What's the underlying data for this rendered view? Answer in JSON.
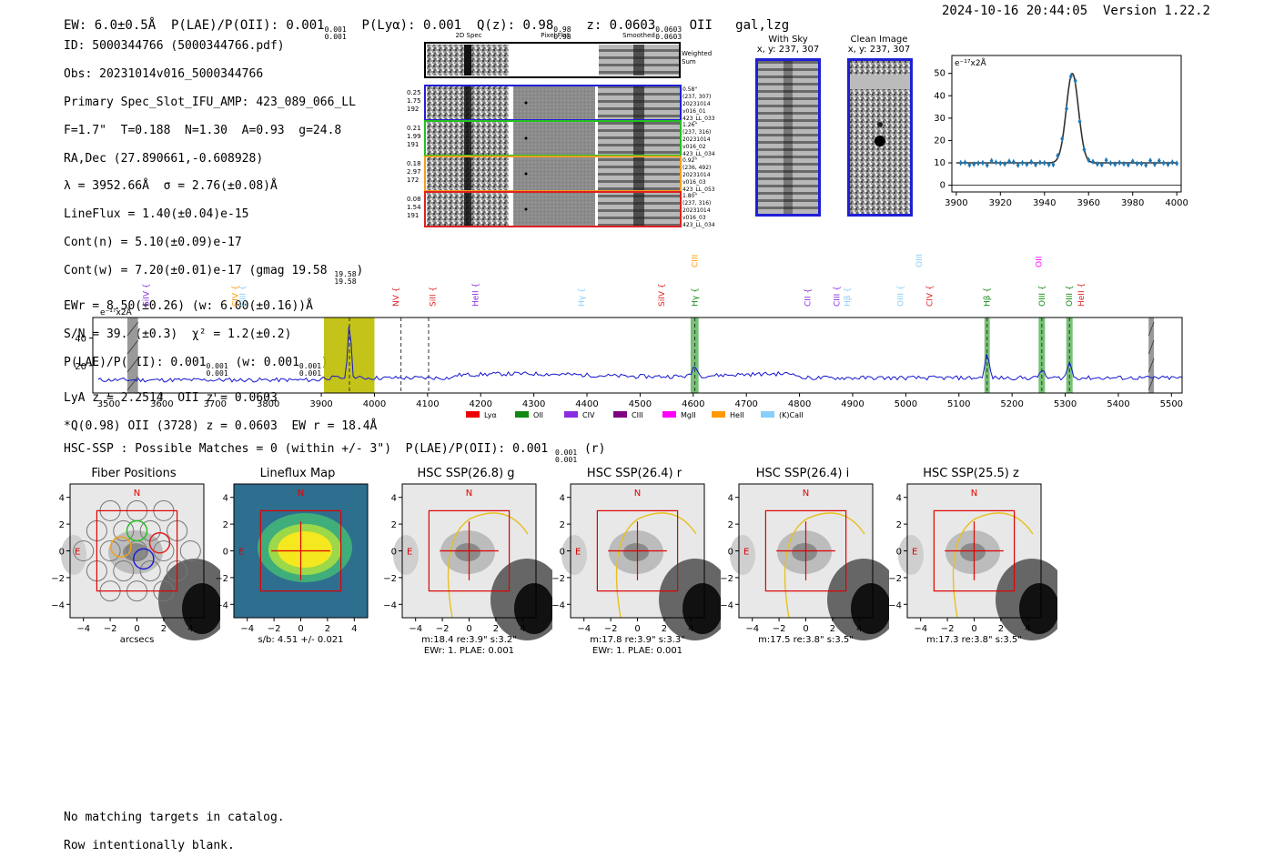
{
  "header": {
    "left": "EW: 6.0±0.5Å  P(LAE)/P(OII): 0.001",
    "plae_hi": "0.001",
    "plae_lo": "0.001",
    "plya": "P(Lyα): 0.001",
    "qz": "Q(z): 0.98",
    "qz_hi": "0.98",
    "qz_lo": "0.98",
    "z": "z: 0.0603",
    "z_hi": "0.0603",
    "z_lo": "0.0603",
    "line": "OII   gal,lzg",
    "right": "2024-10-16 20:44:05  Version 1.22.2"
  },
  "info": {
    "l1": "ID: 5000344766 (5000344766.pdf)",
    "l2": "Obs: 20231014v016_5000344766",
    "l3": "Primary Spec_Slot_IFU_AMP: 423_089_066_LL",
    "l4": "F=1.7\"  T=0.188  N=1.30  A=0.93  g=24.8",
    "l5": "RA,Dec (27.890661,-0.608928)",
    "l6": "λ = 3952.66Å  σ = 2.76(±0.08)Å",
    "l7": "LineFlux = 1.40(±0.04)e-15",
    "l8": "Cont(n) = 5.10(±0.09)e-17",
    "l9": "Cont(w) = 7.20(±0.01)e-17 (gmag 19.58",
    "l9_hi": "19.58",
    "l9_lo": "19.58",
    "l9_end": ")",
    "l10": "EWr = 8.50(±0.26) (w: 6.00(±0.16))Å",
    "l11": "S/N = 39.6(±0.3)  χ² = 1.2(±0.2)",
    "l12a": "P(LAE)/P(OII): 0.001",
    "l12_hi": "0.001",
    "l12_lo": "0.001",
    "l12b": " (w: 0.001",
    "l12b_hi": "0.001",
    "l12b_lo": "0.001",
    "l12c": ")",
    "l13": "LyA z = 2.2514  OII z = 0.0603",
    "l14": "*Q(0.98) OII (3728) z = 0.0603  EW r = 18.4Å"
  },
  "cutouts": {
    "col_2d": "2D Spec",
    "col_flat": "Pixel Flat",
    "col_smooth": "Smoothed",
    "weighted_sum": "Weighted\nSum",
    "rows": [
      {
        "left": [
          "0.25",
          "1.75",
          "192"
        ],
        "right": [
          "0.58\"",
          "(237, 307)",
          "20231014",
          "v016_01",
          "423_LL_033"
        ],
        "color": "#1f1fd6"
      },
      {
        "left": [
          "0.21",
          "1.99",
          "191"
        ],
        "right": [
          "1.26\"",
          "(237, 316)",
          "20231014",
          "v016_02",
          "423_LL_034"
        ],
        "color": "#22c022"
      },
      {
        "left": [
          "0.18",
          "2.97",
          "172"
        ],
        "right": [
          "0.92\"",
          "(236, 492)",
          "20231014",
          "v016_03",
          "423_LL_053"
        ],
        "color": "#f0a020"
      },
      {
        "left": [
          "0.08",
          "1.54",
          "191"
        ],
        "right": [
          "1.80\"",
          "(237, 316)",
          "20231014",
          "v016_03",
          "423_LL_034"
        ],
        "color": "#e02020"
      }
    ],
    "with_sky_title": "With Sky",
    "with_sky_xy": "x, y: 237, 307",
    "clean_title": "Clean Image",
    "clean_xy": "x, y: 237, 307"
  },
  "zoom_chart": {
    "ylabel": "e⁻¹⁷x2Å",
    "xlim": [
      3898,
      4002
    ],
    "ylim": [
      -3,
      58
    ],
    "xticks": [
      3900,
      3920,
      3940,
      3960,
      3980,
      4000
    ],
    "yticks": [
      0,
      10,
      20,
      30,
      40,
      50
    ],
    "center": 3952.66,
    "sigma": 2.76,
    "amp": 40,
    "cont": 10
  },
  "chart_data": [
    {
      "type": "line",
      "title": "",
      "ylabel": "e⁻¹⁷x2Å",
      "xlim": [
        3470,
        5520
      ],
      "ylim": [
        0,
        55
      ],
      "xticks": [
        3500,
        3600,
        3700,
        3800,
        3900,
        4000,
        4100,
        4200,
        4300,
        4400,
        4500,
        4600,
        4700,
        4800,
        4900,
        5000,
        5100,
        5200,
        5300,
        5400,
        5500
      ],
      "yticks": [
        20,
        40
      ],
      "emission_peaks": [
        {
          "x": 3953,
          "y": 52,
          "w": 3
        },
        {
          "x": 4603,
          "y": 19,
          "w": 4
        },
        {
          "x": 5153,
          "y": 28,
          "w": 4
        },
        {
          "x": 5256,
          "y": 17,
          "w": 4
        },
        {
          "x": 5308,
          "y": 22,
          "w": 4
        }
      ],
      "continuum_level": 11,
      "bands": [
        {
          "x0": 3905,
          "x1": 4000,
          "color": "#bcbc00"
        },
        {
          "x0": 4595,
          "x1": 4610,
          "color": "#66bb66"
        },
        {
          "x0": 5148,
          "x1": 5158,
          "color": "#66bb66"
        },
        {
          "x0": 5250,
          "x1": 5262,
          "color": "#66bb66"
        },
        {
          "x0": 5302,
          "x1": 5314,
          "color": "#66bb66"
        },
        {
          "x0": 3535,
          "x1": 3555,
          "color": "#999999"
        },
        {
          "x0": 5457,
          "x1": 5467,
          "color": "#999999"
        }
      ],
      "dashed": [
        3953,
        4050,
        4102,
        4603,
        5153,
        5256,
        5308
      ],
      "line_labels": [
        {
          "t": "SiIV",
          "x": 3570,
          "c": "#8a2be2",
          "row": "low"
        },
        {
          "t": "CIV",
          "x": 3738,
          "c": "#ff9900",
          "row": "low"
        },
        {
          "t": "OIII",
          "x": 3752,
          "c": "#87cefa",
          "row": "low"
        },
        {
          "t": "NV",
          "x": 4040,
          "c": "#e02020",
          "row": "low"
        },
        {
          "t": "SiII",
          "x": 4110,
          "c": "#e02020",
          "row": "low"
        },
        {
          "t": "HeII",
          "x": 4190,
          "c": "#8a2be2",
          "row": "low"
        },
        {
          "t": "Hγ",
          "x": 4390,
          "c": "#87cefa",
          "row": "low"
        },
        {
          "t": "SiIV",
          "x": 4540,
          "c": "#e02020",
          "row": "low"
        },
        {
          "t": "CIII",
          "x": 4603,
          "c": "#ff9900",
          "row": "high"
        },
        {
          "t": "Hγ",
          "x": 4603,
          "c": "#118811",
          "row": "low"
        },
        {
          "t": "CII",
          "x": 4815,
          "c": "#8a2be2",
          "row": "low"
        },
        {
          "t": "CIII",
          "x": 4870,
          "c": "#8a2be2",
          "row": "low"
        },
        {
          "t": "Hβ",
          "x": 4890,
          "c": "#87cefa",
          "row": "low"
        },
        {
          "t": "OIII",
          "x": 4990,
          "c": "#87cefa",
          "row": "low"
        },
        {
          "t": "OIII",
          "x": 5025,
          "c": "#87cefa",
          "row": "high"
        },
        {
          "t": "CIV",
          "x": 5045,
          "c": "#e02020",
          "row": "low"
        },
        {
          "t": "Hβ",
          "x": 5153,
          "c": "#118811",
          "row": "low"
        },
        {
          "t": "OII",
          "x": 5250,
          "c": "#ff00ff",
          "row": "high"
        },
        {
          "t": "OIII",
          "x": 5256,
          "c": "#118811",
          "row": "low"
        },
        {
          "t": "OIII",
          "x": 5308,
          "c": "#118811",
          "row": "low"
        },
        {
          "t": "HeII",
          "x": 5330,
          "c": "#e02020",
          "row": "low"
        }
      ],
      "legend": [
        {
          "name": "Lyα",
          "color": "#ee0000"
        },
        {
          "name": "OII",
          "color": "#118811"
        },
        {
          "name": "CIV",
          "color": "#8a2be2"
        },
        {
          "name": "CIII",
          "color": "#800080"
        },
        {
          "name": "MgII",
          "color": "#ff00ff"
        },
        {
          "name": "HeII",
          "color": "#ff9900"
        },
        {
          "name": "(K)CaII",
          "color": "#87cefa"
        }
      ]
    }
  ],
  "hsc_line": {
    "text": "HSC-SSP : Possible Matches = 0 (within +/- 3\")  P(LAE)/P(OII): 0.001",
    "hi": "0.001",
    "lo": "0.001",
    "end": " (r)"
  },
  "image_panels": [
    {
      "title": "Fiber Positions",
      "caption1": "arcsecs",
      "caption2": ""
    },
    {
      "title": "Lineflux Map",
      "caption1": "s/b: 4.51 +/- 0.021",
      "caption2": ""
    },
    {
      "title": "HSC SSP(26.8) g",
      "caption1": "m:18.4  re:3.9\"  s:3.2\"",
      "caption2": "EWr: 1. PLAE: 0.001"
    },
    {
      "title": "HSC SSP(26.4) r",
      "caption1": "m:17.8  re:3.9\"  s:3.3\"",
      "caption2": "EWr: 1. PLAE: 0.001"
    },
    {
      "title": "HSC SSP(26.4) i",
      "caption1": "m:17.5  re:3.8\"  s:3.5\"",
      "caption2": ""
    },
    {
      "title": "HSC SSP(25.5) z",
      "caption1": "m:17.3  re:3.8\"  s:3.5\"",
      "caption2": ""
    }
  ],
  "panel_axes": {
    "ticks": [
      "4",
      "2",
      "0",
      "−2",
      "−4"
    ],
    "xticks": [
      "−4",
      "−2",
      "0",
      "2",
      "4"
    ],
    "n": "N",
    "e": "E"
  },
  "footer": {
    "l1": "No matching targets in catalog.",
    "l2": "Row intentionally blank."
  }
}
